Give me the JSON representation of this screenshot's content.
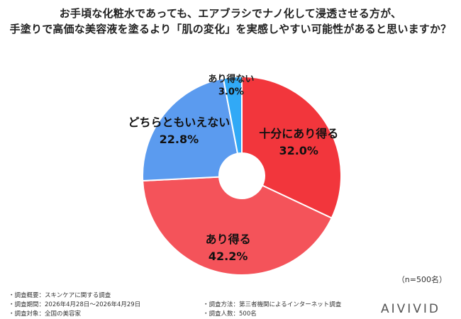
{
  "title_lines": [
    "お手頃な化粧水であっても、エアブラシでナノ化して浸透させる方が、",
    "手塗りで高価な美容液を塗るより「肌の変化」を実感しやすい可能性があると思いますか？"
  ],
  "sample_note": "（n=500名）",
  "brand": "AIVIVID",
  "footnotes": [
    "・調査概要：スキンケアに関する調査",
    "・調査期間：2026年4月28日～2026年4月29日",
    "・調査対象：全国の美容家",
    "・調査方法：第三者機関によるインターネット調査",
    "・調査人数：500名"
  ],
  "chart_data": {
    "type": "pie",
    "donut": true,
    "start": "12 o'clock",
    "direction": "clockwise",
    "slices": [
      {
        "label": "十分にあり得る",
        "value": 32.0,
        "display": "32.0%",
        "color": "#f2363c"
      },
      {
        "label": "あり得る",
        "value": 42.2,
        "display": "42.2%",
        "color": "#f4535a"
      },
      {
        "label": "どちらともいえない",
        "value": 22.8,
        "display": "22.8%",
        "color": "#5b9bef"
      },
      {
        "label": "あり得ない",
        "value": 3.0,
        "display": "3.0%",
        "color": "#31a9f6"
      }
    ]
  }
}
